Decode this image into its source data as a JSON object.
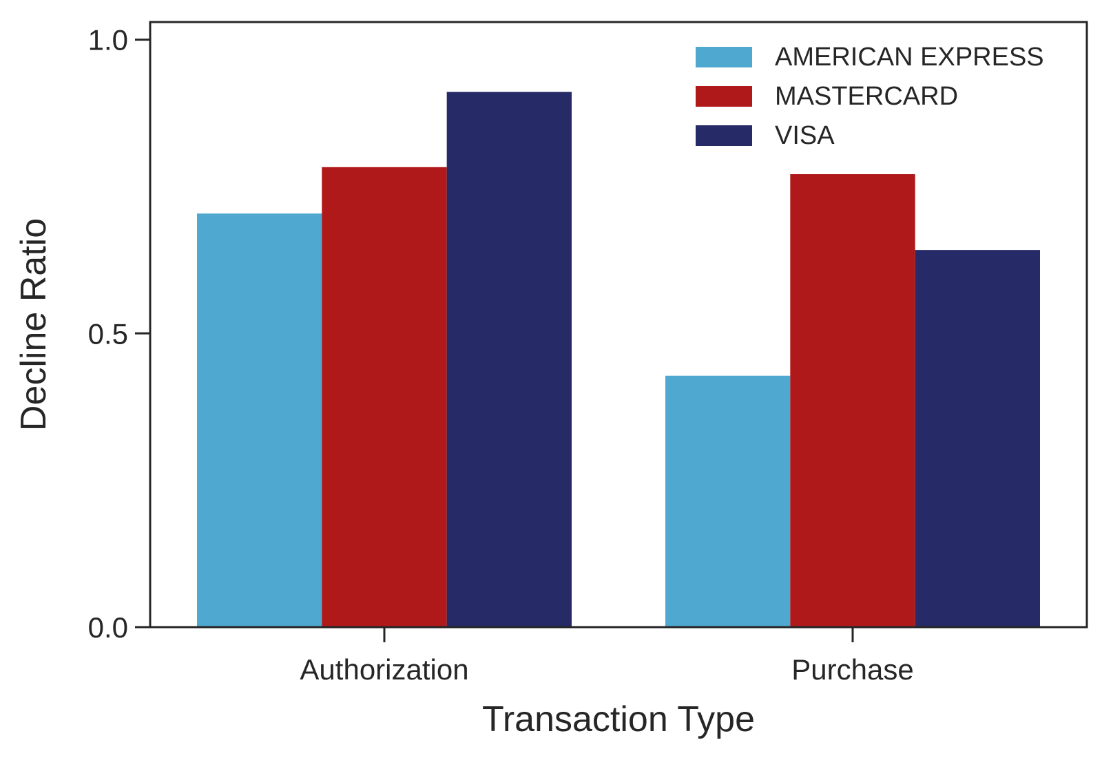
{
  "chart_data": {
    "type": "bar",
    "title": "",
    "xlabel": "Transaction Type",
    "ylabel": "Decline Ratio",
    "ylim": [
      0,
      1.03
    ],
    "yticks": [
      0.0,
      0.5,
      1.0
    ],
    "ytick_labels": [
      "0.0",
      "0.5",
      "1.0"
    ],
    "categories": [
      "Authorization",
      "Purchase"
    ],
    "series": [
      {
        "name": "AMERICAN EXPRESS",
        "color": "#4EA8D0",
        "values": [
          0.704,
          0.428
        ]
      },
      {
        "name": "MASTERCARD",
        "color": "#B0191A",
        "values": [
          0.783,
          0.771
        ]
      },
      {
        "name": "VISA",
        "color": "#262A67",
        "values": [
          0.911,
          0.642
        ]
      }
    ],
    "legend": "top-right",
    "grid": false
  }
}
